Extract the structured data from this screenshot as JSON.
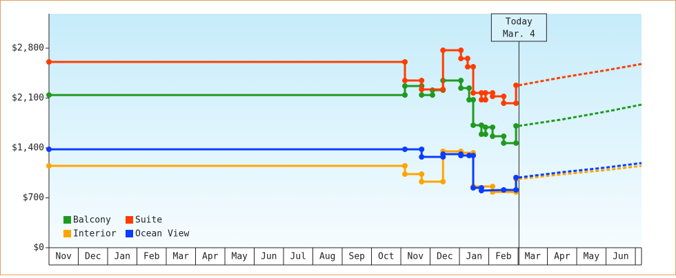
{
  "chart_data": {
    "type": "line",
    "categories": [
      "Nov",
      "Dec",
      "Jan",
      "Feb",
      "Mar",
      "Apr",
      "May",
      "Jun",
      "Jul",
      "Aug",
      "Sep",
      "Oct",
      "Nov",
      "Dec",
      "Jan",
      "Feb",
      "Mar",
      "Apr",
      "May",
      "Jun"
    ],
    "xlim": [
      0,
      20.21
    ],
    "ylim": [
      0,
      3283
    ],
    "yticks": [
      {
        "value": 0,
        "label": "$0"
      },
      {
        "value": 700,
        "label": "$700"
      },
      {
        "value": 1400,
        "label": "$1,400"
      },
      {
        "value": 2100,
        "label": "$2,100"
      },
      {
        "value": 2800,
        "label": "$2,800"
      }
    ],
    "annotation": {
      "text": [
        "Today",
        "Mar. 4"
      ],
      "x": 16.03
    },
    "series": [
      {
        "name": "Balcony",
        "color": "#1f9a1f",
        "x": [
          0,
          12.14,
          12.14,
          12.71,
          12.71,
          13.08,
          13.08,
          13.44,
          13.44,
          14.05,
          14.05,
          14.33,
          14.33,
          14.47,
          14.47,
          14.75,
          14.75,
          14.89,
          14.89,
          15.13,
          15.13,
          15.51,
          15.51,
          15.93,
          15.93
        ],
        "values": [
          2143,
          2143,
          2269,
          2269,
          2143,
          2143,
          2211,
          2211,
          2346,
          2346,
          2240,
          2240,
          2076,
          2076,
          1719,
          1719,
          1593,
          1593,
          1690,
          1690,
          1564,
          1564,
          1468,
          1468,
          1709
        ],
        "forecast_x": [
          16.02,
          17.5,
          19,
          20.21
        ],
        "forecast_values": [
          1709,
          1800,
          1910,
          2008
        ]
      },
      {
        "name": "Suite",
        "color": "#ff3c00",
        "x": [
          0,
          12.14,
          12.14,
          12.71,
          12.71,
          13.44,
          13.44,
          14.05,
          14.05,
          14.28,
          14.28,
          14.47,
          14.47,
          14.75,
          14.75,
          14.89,
          14.89,
          15.13,
          15.13,
          15.51,
          15.51,
          15.93,
          15.93
        ],
        "values": [
          2607,
          2607,
          2346,
          2346,
          2221,
          2221,
          2771,
          2771,
          2655,
          2655,
          2539,
          2539,
          2172,
          2172,
          2076,
          2076,
          2172,
          2172,
          2124,
          2124,
          2028,
          2028,
          2279
        ],
        "forecast_x": [
          16.02,
          17.5,
          19,
          20.21
        ],
        "forecast_values": [
          2279,
          2390,
          2490,
          2578
        ]
      },
      {
        "name": "Interior",
        "color": "#ffa500",
        "x": [
          0,
          12.14,
          12.14,
          12.71,
          12.71,
          13.44,
          13.44,
          14.05,
          14.05,
          14.47,
          14.47,
          15.13,
          15.13,
          15.93,
          15.93
        ],
        "values": [
          1149,
          1149,
          1033,
          1033,
          927,
          927,
          1352,
          1352,
          1332,
          1332,
          859,
          859,
          782,
          782,
          965
        ],
        "forecast_x": [
          16.02,
          17.5,
          19,
          20.21
        ],
        "forecast_values": [
          965,
          1030,
          1090,
          1149
        ]
      },
      {
        "name": "Ocean View",
        "color": "#0a3cff",
        "x": [
          0,
          12.14,
          12.71,
          12.71,
          13.44,
          13.44,
          14.05,
          14.05,
          14.33,
          14.47,
          14.47,
          14.75,
          14.75,
          15.51,
          15.93,
          15.93
        ],
        "values": [
          1381,
          1381,
          1381,
          1274,
          1274,
          1313,
          1313,
          1294,
          1294,
          1294,
          840,
          840,
          801,
          811,
          811,
          985
        ],
        "forecast_x": [
          16.02,
          17.5,
          19,
          20.21
        ],
        "forecast_values": [
          985,
          1060,
          1125,
          1188
        ]
      }
    ]
  }
}
